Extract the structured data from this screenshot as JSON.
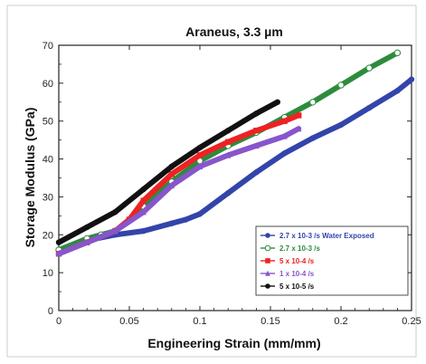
{
  "chart_data": {
    "type": "scatter",
    "title": "Araneus, 3.3 µm",
    "xlabel": "Engineering Strain (mm/mm)",
    "ylabel": "Storage Modulus (GPa)",
    "xlim": [
      0,
      0.25
    ],
    "ylim": [
      0,
      70
    ],
    "xticks": [
      0,
      0.05,
      0.1,
      0.15,
      0.2,
      0.25
    ],
    "xtick_labels": [
      "0",
      "0.05",
      "0.1",
      "0.15",
      "0.2",
      "0.25"
    ],
    "yticks": [
      0,
      10,
      20,
      30,
      40,
      50,
      60,
      70
    ],
    "ytick_labels": [
      "0",
      "10",
      "20",
      "30",
      "40",
      "50",
      "60",
      "70"
    ],
    "grid": false,
    "legend_position": "bottom-right",
    "series": [
      {
        "name": "2.7 x 10-3 /s Water Exposed",
        "color": "#3344aa",
        "marker": "circle-filled",
        "x": [
          0,
          0.02,
          0.04,
          0.06,
          0.08,
          0.09,
          0.1,
          0.12,
          0.14,
          0.16,
          0.18,
          0.2,
          0.22,
          0.24,
          0.25
        ],
        "y": [
          15,
          18.5,
          20,
          21,
          23,
          24,
          25.5,
          31,
          36.5,
          41.5,
          45.5,
          49,
          53.5,
          58,
          61
        ]
      },
      {
        "name": "2.7 x 10-3 /s",
        "color": "#2e8b3e",
        "marker": "circle-open",
        "x": [
          0,
          0.02,
          0.03,
          0.04,
          0.05,
          0.06,
          0.08,
          0.1,
          0.12,
          0.14,
          0.16,
          0.18,
          0.2,
          0.22,
          0.24
        ],
        "y": [
          16,
          19,
          20,
          21,
          24,
          27.5,
          34,
          39.5,
          43.5,
          47,
          51,
          55,
          59.5,
          64,
          68
        ]
      },
      {
        "name": "5 x 10-4 /s",
        "color": "#ee2222",
        "marker": "square-filled",
        "x": [
          0,
          0.02,
          0.04,
          0.05,
          0.06,
          0.08,
          0.1,
          0.12,
          0.14,
          0.16,
          0.17
        ],
        "y": [
          15,
          18,
          21,
          24,
          29,
          36,
          41,
          44.5,
          47.5,
          50,
          51.5
        ]
      },
      {
        "name": "1 x 10-4 /s",
        "color": "#8855cc",
        "marker": "triangle-filled",
        "x": [
          0,
          0.02,
          0.04,
          0.06,
          0.08,
          0.1,
          0.12,
          0.14,
          0.16,
          0.17
        ],
        "y": [
          15,
          18,
          21,
          26,
          33,
          38,
          41,
          43.5,
          46,
          48
        ]
      },
      {
        "name": "5 x 10-5 /s",
        "color": "#111111",
        "marker": "circle-filled",
        "x": [
          0,
          0.02,
          0.04,
          0.06,
          0.08,
          0.1,
          0.12,
          0.14,
          0.155
        ],
        "y": [
          18,
          22,
          26,
          32,
          38,
          43,
          47.5,
          52,
          55
        ]
      }
    ]
  }
}
